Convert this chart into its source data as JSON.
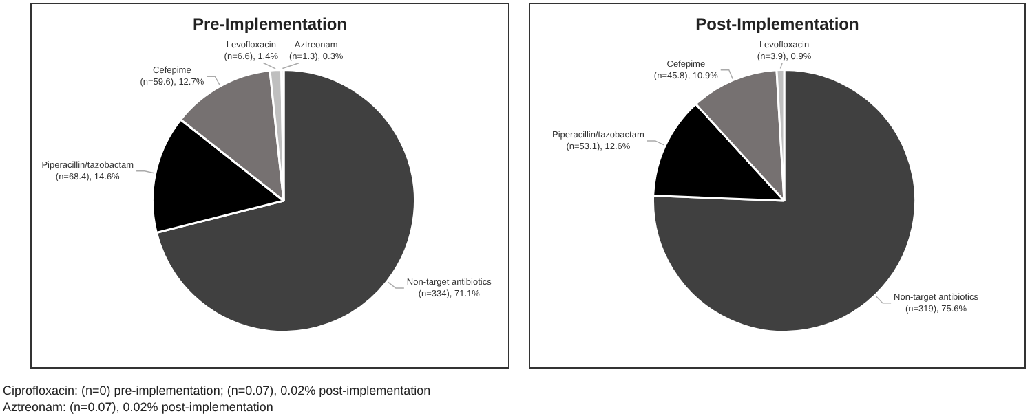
{
  "chart_data": [
    {
      "type": "pie",
      "title": "Pre-Implementation",
      "categories": [
        "Non-target antibiotics",
        "Piperacillin/tazobactam",
        "Cefepime",
        "Levofloxacin",
        "Aztreonam"
      ],
      "values": [
        334,
        68.4,
        59.6,
        6.6,
        1.3
      ],
      "colors": [
        "#404040",
        "#000000",
        "#767171",
        "#bfbfbf",
        "#d9d9d9"
      ],
      "value_labels": [
        "(n=334), 71.1%",
        "(n=68.4), 14.6%",
        "(n=59.6), 12.7%",
        "(n=6.6), 1.4%",
        "(n=1.3), 0.3%"
      ],
      "legend": false,
      "annotations": [
        "Ciprofloxacin: (n=0) pre-implementation; (n=0.07), 0.02% post-implementation",
        "Aztreonam: (n=0.07), 0.02% post-implementation"
      ]
    },
    {
      "type": "pie",
      "title": "Post-Implementation",
      "categories": [
        "Non-target antibiotics",
        "Piperacillin/tazobactam",
        "Cefepime",
        "Levofloxacin"
      ],
      "values": [
        319,
        53.1,
        45.8,
        3.9
      ],
      "colors": [
        "#404040",
        "#000000",
        "#767171",
        "#bfbfbf"
      ],
      "value_labels": [
        "(n=319), 75.6%",
        "(n=53.1), 12.6%",
        "(n=45.8), 10.9%",
        "(n=3.9), 0.9%"
      ],
      "legend": false
    }
  ]
}
